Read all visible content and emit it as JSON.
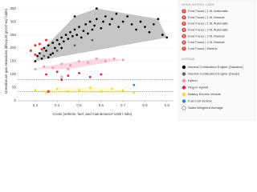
{
  "chart_data": {
    "type": "scatter",
    "xlabel": "Costs (vehicle, fuel, and maintenance US$ / mile)",
    "ylabel": "Greenhouse gas emissions (lifecycle gCO2-eq / mile)",
    "xlim": [
      0.22,
      0.93
    ],
    "ylim": [
      0,
      370
    ],
    "xticks": [
      0.3,
      0.4,
      0.5,
      0.6,
      0.7,
      0.8,
      0.9
    ],
    "yticks": [
      0,
      50,
      100,
      150,
      200,
      250,
      300,
      350
    ],
    "reference_lines": [
      80,
      35
    ],
    "highlighted_title": "HIGHLIGHTED CARS",
    "highlighted_color": "#e53935",
    "highlighted": [
      {
        "label": "1",
        "name": "Ford Focus | 1.0L Automatic",
        "x": 0.28,
        "y": 190
      },
      {
        "label": "2",
        "name": "Ford Focus | 1.0L Manual",
        "x": 0.3,
        "y": 175
      },
      {
        "label": "3",
        "name": "Ford Focus | 1.5L Automatic",
        "x": 0.3,
        "y": 210
      },
      {
        "label": "4",
        "name": "Ford Focus | 2.0L Automatic",
        "x": 0.33,
        "y": 195
      },
      {
        "label": "5",
        "name": "Ford Focus | 2.0L Manual",
        "x": 0.32,
        "y": 215
      },
      {
        "label": "6",
        "name": "Ford Focus | 2.3L Manual",
        "x": 0.35,
        "y": 230
      },
      {
        "label": "7",
        "name": "Ford Focus | Electric",
        "x": 0.36,
        "y": 35
      }
    ],
    "legend_title": "LEGEND",
    "series": [
      {
        "name": "Internal Combustion Engine (Gasoline)",
        "color": "#111111",
        "envelope": "#9e9e9e",
        "values": [
          [
            0.3,
            150
          ],
          [
            0.31,
            170
          ],
          [
            0.32,
            180
          ],
          [
            0.33,
            160
          ],
          [
            0.34,
            200
          ],
          [
            0.35,
            190
          ],
          [
            0.36,
            210
          ],
          [
            0.37,
            175
          ],
          [
            0.38,
            220
          ],
          [
            0.39,
            200
          ],
          [
            0.4,
            230
          ],
          [
            0.41,
            215
          ],
          [
            0.42,
            240
          ],
          [
            0.43,
            225
          ],
          [
            0.44,
            250
          ],
          [
            0.45,
            235
          ],
          [
            0.46,
            260
          ],
          [
            0.47,
            245
          ],
          [
            0.48,
            270
          ],
          [
            0.49,
            250
          ],
          [
            0.5,
            280
          ],
          [
            0.51,
            240
          ],
          [
            0.52,
            265
          ],
          [
            0.53,
            290
          ],
          [
            0.54,
            255
          ],
          [
            0.55,
            300
          ],
          [
            0.56,
            270
          ],
          [
            0.57,
            285
          ],
          [
            0.58,
            310
          ],
          [
            0.6,
            275
          ],
          [
            0.61,
            300
          ],
          [
            0.62,
            320
          ],
          [
            0.64,
            290
          ],
          [
            0.65,
            310
          ],
          [
            0.67,
            330
          ],
          [
            0.68,
            280
          ],
          [
            0.7,
            300
          ],
          [
            0.72,
            320
          ],
          [
            0.74,
            290
          ],
          [
            0.76,
            270
          ],
          [
            0.78,
            300
          ],
          [
            0.8,
            280
          ],
          [
            0.82,
            260
          ],
          [
            0.84,
            290
          ],
          [
            0.86,
            310
          ],
          [
            0.88,
            250
          ],
          [
            0.9,
            240
          ],
          [
            0.58,
            350
          ],
          [
            0.48,
            320
          ],
          [
            0.42,
            200
          ],
          [
            0.38,
            180
          ],
          [
            0.36,
            165
          ]
        ]
      },
      {
        "name": "Internal Combustion Engine (Diesel)",
        "color": "#616161",
        "values": [
          [
            0.34,
            170
          ],
          [
            0.4,
            190
          ],
          [
            0.48,
            210
          ],
          [
            0.56,
            230
          ]
        ]
      },
      {
        "name": "Hybrid",
        "color": "#f48fb1",
        "envelope": "#f8bbd0",
        "values": [
          [
            0.3,
            120
          ],
          [
            0.34,
            130
          ],
          [
            0.38,
            125
          ],
          [
            0.42,
            140
          ],
          [
            0.46,
            135
          ],
          [
            0.5,
            150
          ],
          [
            0.54,
            145
          ],
          [
            0.58,
            160
          ],
          [
            0.62,
            150
          ],
          [
            0.66,
            160
          ],
          [
            0.7,
            155
          ],
          [
            0.45,
            120
          ]
        ]
      },
      {
        "name": "Plug-in Hybrid",
        "color": "#d81b60",
        "values": [
          [
            0.35,
            100
          ],
          [
            0.4,
            110
          ],
          [
            0.45,
            95
          ],
          [
            0.5,
            105
          ],
          [
            0.55,
            90
          ],
          [
            0.42,
            80
          ],
          [
            0.6,
            100
          ]
        ]
      },
      {
        "name": "Battery Electric Vehicle",
        "color": "#fdd835",
        "envelope": "#fff59d",
        "values": [
          [
            0.3,
            40
          ],
          [
            0.35,
            30
          ],
          [
            0.4,
            45
          ],
          [
            0.45,
            35
          ],
          [
            0.5,
            40
          ],
          [
            0.55,
            50
          ],
          [
            0.6,
            35
          ],
          [
            0.65,
            45
          ],
          [
            0.7,
            40
          ],
          [
            0.75,
            30
          ]
        ]
      },
      {
        "name": "Fuel Cell Vehicle",
        "color": "#1e88e5",
        "values": [
          [
            0.75,
            60
          ]
        ]
      },
      {
        "name": "Sales Weighted Average",
        "color": "#ffffff",
        "stroke": "#333333",
        "values": [
          [
            0.42,
            90
          ]
        ]
      }
    ]
  }
}
